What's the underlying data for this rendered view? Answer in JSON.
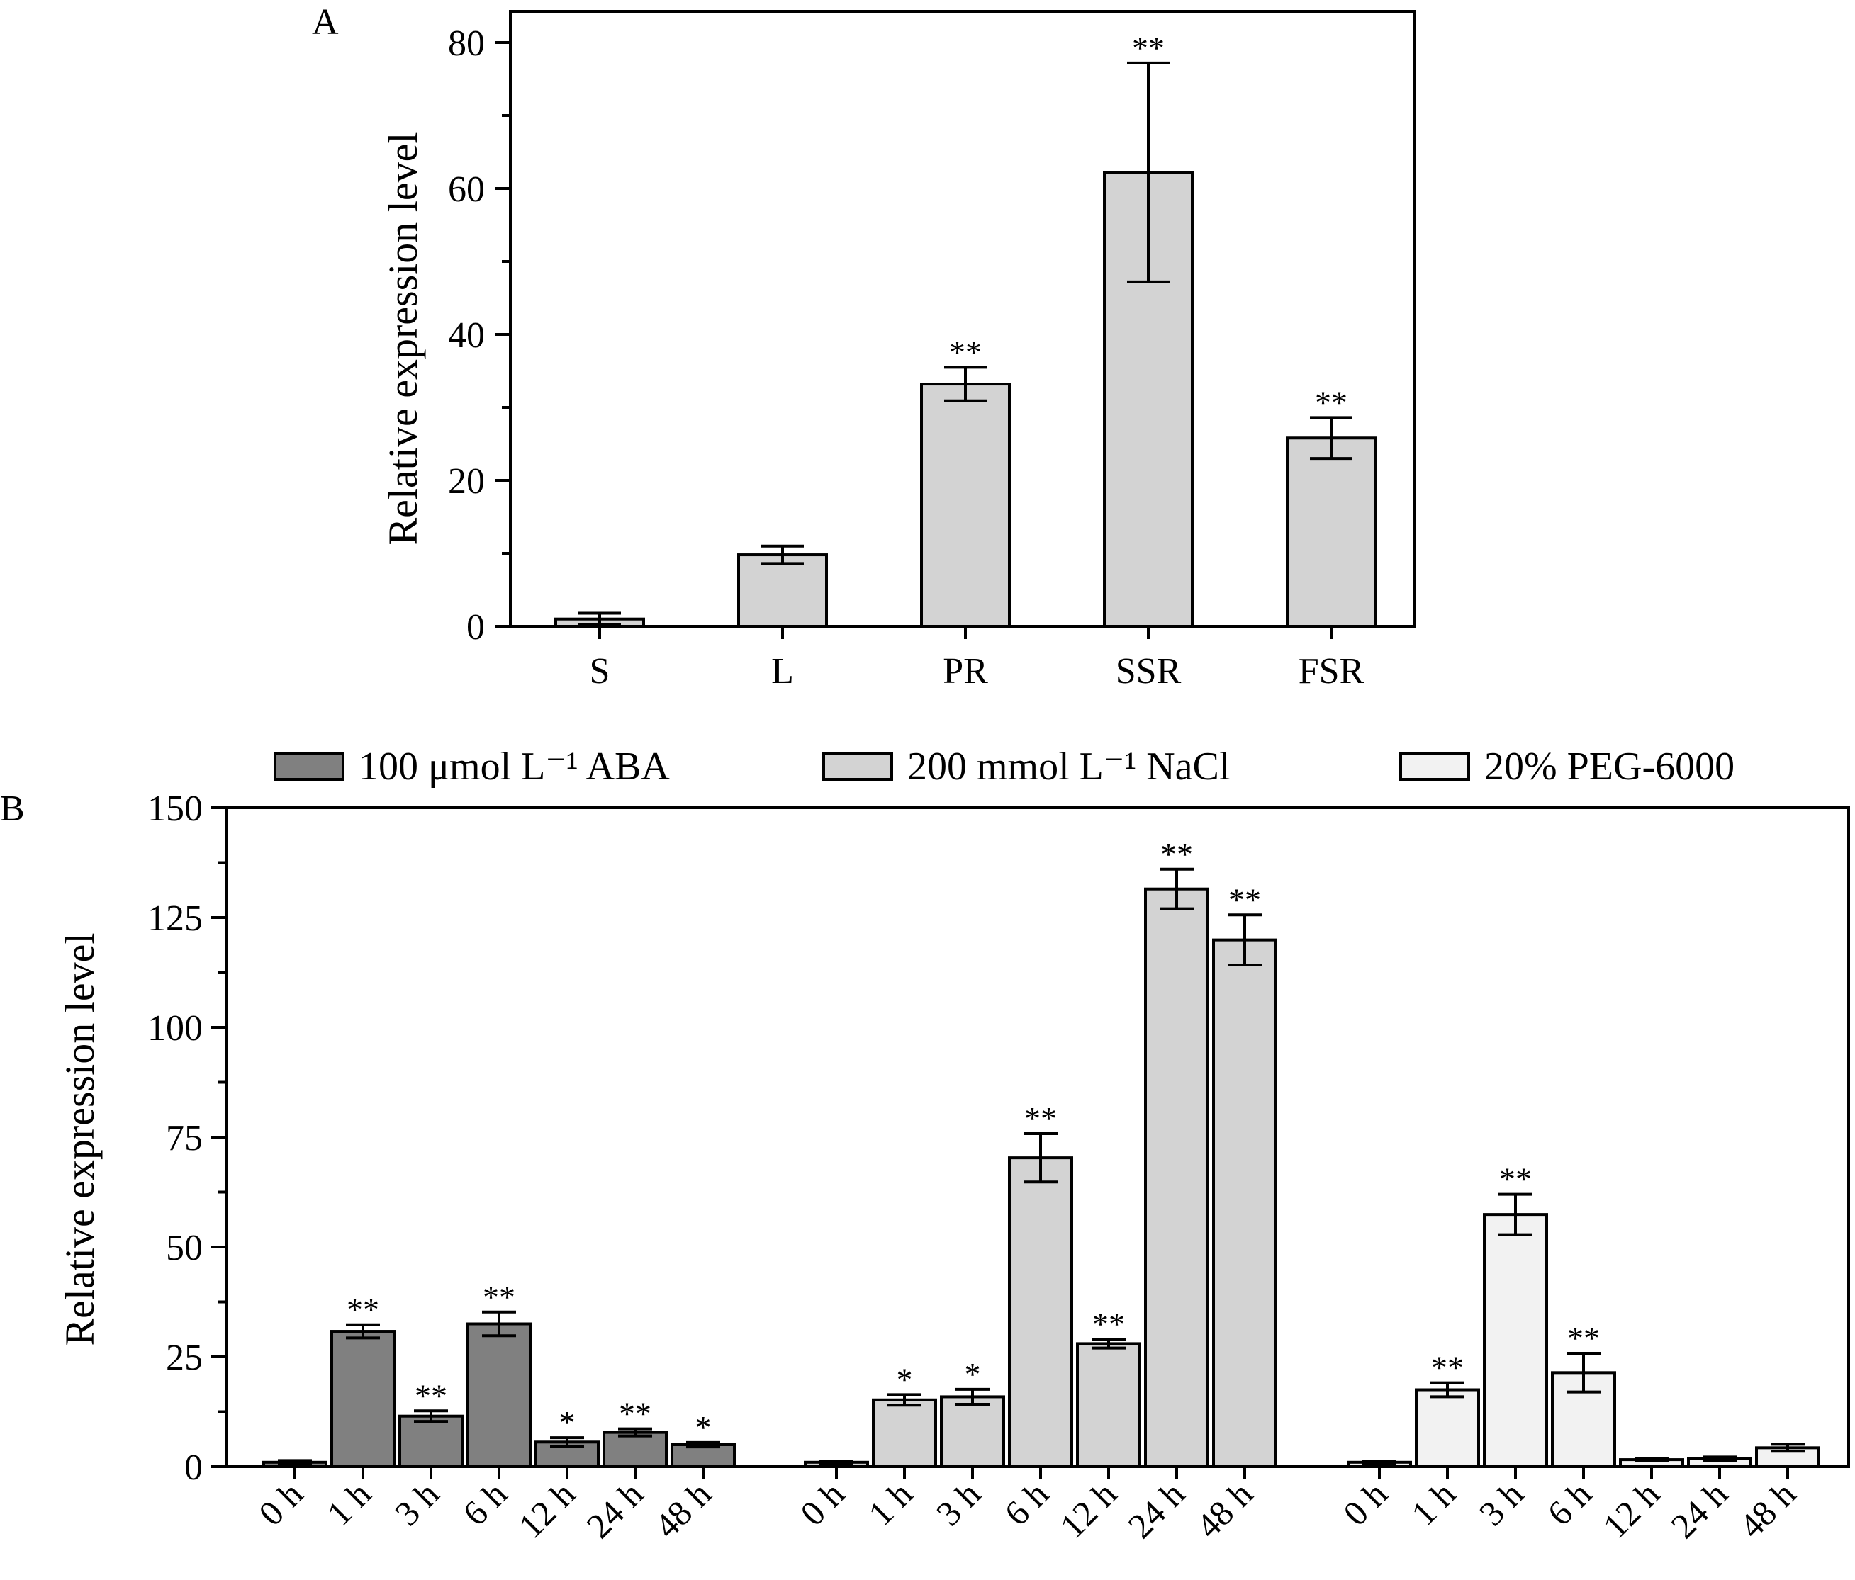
{
  "chart_data": [
    {
      "type": "bar",
      "panel_label": "A",
      "ylabel": "Relative expression level",
      "ylim": [
        0,
        80
      ],
      "yticks": [
        0,
        20,
        40,
        60,
        80
      ],
      "bar_color": "#d3d3d3",
      "categories": [
        "S",
        "L",
        "PR",
        "SSR",
        "FSR"
      ],
      "values": [
        1.0,
        9.8,
        33.2,
        62.2,
        25.8
      ],
      "errors": [
        0.8,
        1.2,
        2.3,
        15.0,
        2.8
      ],
      "significance": [
        "",
        "",
        "**",
        "**",
        "**"
      ],
      "grid": false
    },
    {
      "type": "bar",
      "panel_label": "B",
      "ylabel": "Relative expression level",
      "ylim": [
        0,
        150
      ],
      "yticks": [
        0,
        25,
        50,
        75,
        100,
        125,
        150
      ],
      "legend_position": "top",
      "grid": false,
      "groups": [
        {
          "name": "100 μmol L⁻¹ ABA",
          "color": "#808080",
          "categories": [
            "0 h",
            "1 h",
            "3 h",
            "6 h",
            "12 h",
            "24 h",
            "48 h"
          ],
          "values": [
            1.0,
            30.8,
            11.5,
            32.5,
            5.6,
            7.8,
            5.0
          ],
          "errors": [
            0.4,
            1.5,
            1.2,
            2.7,
            1.0,
            0.8,
            0.5
          ],
          "significance": [
            "",
            "**",
            "**",
            "**",
            "*",
            "**",
            "*"
          ]
        },
        {
          "name": "200 mmol L⁻¹ NaCl",
          "color": "#d3d3d3",
          "categories": [
            "0 h",
            "1 h",
            "3 h",
            "6 h",
            "12 h",
            "24 h",
            "48 h"
          ],
          "values": [
            1.0,
            15.2,
            15.9,
            70.3,
            28.0,
            131.5,
            119.9
          ],
          "errors": [
            0.3,
            1.2,
            1.7,
            5.5,
            1.0,
            4.5,
            5.7
          ],
          "significance": [
            "",
            "*",
            "*",
            "**",
            "**",
            "**",
            "**"
          ]
        },
        {
          "name": "20% PEG-6000",
          "color": "#f2f2f2",
          "categories": [
            "0 h",
            "1 h",
            "3 h",
            "6 h",
            "12 h",
            "24 h",
            "48 h"
          ],
          "values": [
            1.0,
            17.5,
            57.4,
            21.4,
            1.6,
            1.8,
            4.3
          ],
          "errors": [
            0.3,
            1.6,
            4.6,
            4.4,
            0.3,
            0.4,
            0.8
          ],
          "significance": [
            "",
            "**",
            "**",
            "**",
            "",
            "",
            ""
          ]
        }
      ]
    }
  ]
}
